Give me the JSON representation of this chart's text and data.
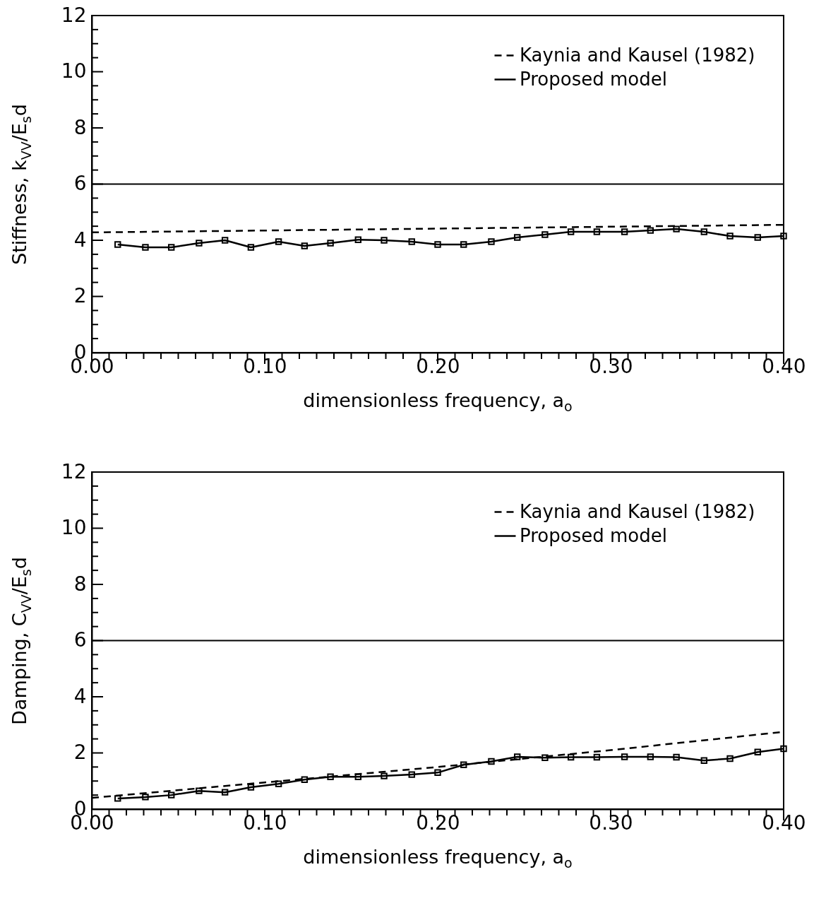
{
  "chart_data": [
    {
      "type": "line",
      "xlabel": "dimensionless frequency, a$_{o}$",
      "ylabel": "Stiffness, k$_{VV}$/E$_{s}$d",
      "xlim": [
        0,
        0.4
      ],
      "ylim": [
        0,
        12
      ],
      "xticks": [
        {
          "value": 0,
          "label": "0.00"
        },
        {
          "value": 0.01,
          "label": null
        },
        {
          "value": 0.02,
          "label": null
        },
        {
          "value": 0.03,
          "label": null
        },
        {
          "value": 0.04,
          "label": null
        },
        {
          "value": 0.05,
          "label": null
        },
        {
          "value": 0.06,
          "label": null
        },
        {
          "value": 0.07,
          "label": null
        },
        {
          "value": 0.08,
          "label": null
        },
        {
          "value": 0.09,
          "label": null
        },
        {
          "value": 0.1,
          "label": "0.10"
        },
        {
          "value": 0.11,
          "label": null
        },
        {
          "value": 0.12,
          "label": null
        },
        {
          "value": 0.13,
          "label": null
        },
        {
          "value": 0.14,
          "label": null
        },
        {
          "value": 0.15,
          "label": null
        },
        {
          "value": 0.16,
          "label": null
        },
        {
          "value": 0.17,
          "label": null
        },
        {
          "value": 0.18,
          "label": null
        },
        {
          "value": 0.19,
          "label": null
        },
        {
          "value": 0.2,
          "label": "0.20"
        },
        {
          "value": 0.21,
          "label": null
        },
        {
          "value": 0.22,
          "label": null
        },
        {
          "value": 0.23,
          "label": null
        },
        {
          "value": 0.24,
          "label": null
        },
        {
          "value": 0.25,
          "label": null
        },
        {
          "value": 0.26,
          "label": null
        },
        {
          "value": 0.27,
          "label": null
        },
        {
          "value": 0.28,
          "label": null
        },
        {
          "value": 0.29,
          "label": null
        },
        {
          "value": 0.3,
          "label": "0.30"
        },
        {
          "value": 0.31,
          "label": null
        },
        {
          "value": 0.32,
          "label": null
        },
        {
          "value": 0.33,
          "label": null
        },
        {
          "value": 0.34,
          "label": null
        },
        {
          "value": 0.35,
          "label": null
        },
        {
          "value": 0.36,
          "label": null
        },
        {
          "value": 0.37,
          "label": null
        },
        {
          "value": 0.38,
          "label": null
        },
        {
          "value": 0.39,
          "label": null
        },
        {
          "value": 0.4,
          "label": "0.40"
        }
      ],
      "yticks": [
        0,
        {
          "value": 0.5,
          "label": null
        },
        {
          "value": 1,
          "label": null
        },
        {
          "value": 1.5,
          "label": null
        },
        2,
        {
          "value": 2.5,
          "label": null
        },
        {
          "value": 3,
          "label": null
        },
        {
          "value": 3.5,
          "label": null
        },
        4,
        {
          "value": 4.5,
          "label": null
        },
        {
          "value": 5,
          "label": null
        },
        {
          "value": 5.5,
          "label": null
        },
        6,
        {
          "value": 6.5,
          "label": null
        },
        {
          "value": 7,
          "label": null
        },
        {
          "value": 7.5,
          "label": null
        },
        8,
        {
          "value": 8.5,
          "label": null
        },
        {
          "value": 9,
          "label": null
        },
        {
          "value": 9.5,
          "label": null
        },
        10,
        {
          "value": 10.5,
          "label": null
        },
        {
          "value": 11,
          "label": null
        },
        {
          "value": 11.5,
          "label": null
        },
        12
      ],
      "legend": "top right",
      "ref_lines": [
        {
          "axis": "y",
          "value": 6
        }
      ],
      "series": [
        {
          "name": "Kaynia and Kausel (1982)",
          "color": "#000000",
          "line_style": "dashed",
          "marker": "none",
          "x": [
            0,
            0.4
          ],
          "values": [
            4.28,
            4.55
          ]
        },
        {
          "name": "Proposed model",
          "color": "#000000",
          "line_style": "solid",
          "marker": "square",
          "x": [
            0.015,
            0.031,
            0.046,
            0.062,
            0.077,
            0.092,
            0.108,
            0.123,
            0.138,
            0.154,
            0.169,
            0.185,
            0.2,
            0.215,
            0.231,
            0.246,
            0.262,
            0.277,
            0.292,
            0.308,
            0.323,
            0.338,
            0.354,
            0.369,
            0.385,
            0.4
          ],
          "values": [
            3.85,
            3.75,
            3.75,
            3.9,
            4.0,
            3.75,
            3.95,
            3.8,
            3.9,
            4.02,
            4.0,
            3.95,
            3.85,
            3.85,
            3.95,
            4.1,
            4.2,
            4.3,
            4.3,
            4.3,
            4.35,
            4.4,
            4.3,
            4.15,
            4.1,
            4.15
          ]
        }
      ]
    },
    {
      "type": "line",
      "xlabel": "dimensionless frequency, a$_{o}$",
      "ylabel": "Damping, C$_{VV}$/E$_{s}$d",
      "xlim": [
        0,
        0.4
      ],
      "ylim": [
        0,
        12
      ],
      "xticks": [
        {
          "value": 0,
          "label": "0.00"
        },
        {
          "value": 0.01,
          "label": null
        },
        {
          "value": 0.02,
          "label": null
        },
        {
          "value": 0.03,
          "label": null
        },
        {
          "value": 0.04,
          "label": null
        },
        {
          "value": 0.05,
          "label": null
        },
        {
          "value": 0.06,
          "label": null
        },
        {
          "value": 0.07,
          "label": null
        },
        {
          "value": 0.08,
          "label": null
        },
        {
          "value": 0.09,
          "label": null
        },
        {
          "value": 0.1,
          "label": "0.10"
        },
        {
          "value": 0.11,
          "label": null
        },
        {
          "value": 0.12,
          "label": null
        },
        {
          "value": 0.13,
          "label": null
        },
        {
          "value": 0.14,
          "label": null
        },
        {
          "value": 0.15,
          "label": null
        },
        {
          "value": 0.16,
          "label": null
        },
        {
          "value": 0.17,
          "label": null
        },
        {
          "value": 0.18,
          "label": null
        },
        {
          "value": 0.19,
          "label": null
        },
        {
          "value": 0.2,
          "label": "0.20"
        },
        {
          "value": 0.21,
          "label": null
        },
        {
          "value": 0.22,
          "label": null
        },
        {
          "value": 0.23,
          "label": null
        },
        {
          "value": 0.24,
          "label": null
        },
        {
          "value": 0.25,
          "label": null
        },
        {
          "value": 0.26,
          "label": null
        },
        {
          "value": 0.27,
          "label": null
        },
        {
          "value": 0.28,
          "label": null
        },
        {
          "value": 0.29,
          "label": null
        },
        {
          "value": 0.3,
          "label": "0.30"
        },
        {
          "value": 0.31,
          "label": null
        },
        {
          "value": 0.32,
          "label": null
        },
        {
          "value": 0.33,
          "label": null
        },
        {
          "value": 0.34,
          "label": null
        },
        {
          "value": 0.35,
          "label": null
        },
        {
          "value": 0.36,
          "label": null
        },
        {
          "value": 0.37,
          "label": null
        },
        {
          "value": 0.38,
          "label": null
        },
        {
          "value": 0.39,
          "label": null
        },
        {
          "value": 0.4,
          "label": "0.40"
        }
      ],
      "yticks": [
        0,
        {
          "value": 0.5,
          "label": null
        },
        {
          "value": 1,
          "label": null
        },
        {
          "value": 1.5,
          "label": null
        },
        2,
        {
          "value": 2.5,
          "label": null
        },
        {
          "value": 3,
          "label": null
        },
        {
          "value": 3.5,
          "label": null
        },
        4,
        {
          "value": 4.5,
          "label": null
        },
        {
          "value": 5,
          "label": null
        },
        {
          "value": 5.5,
          "label": null
        },
        6,
        {
          "value": 6.5,
          "label": null
        },
        {
          "value": 7,
          "label": null
        },
        {
          "value": 7.5,
          "label": null
        },
        8,
        {
          "value": 8.5,
          "label": null
        },
        {
          "value": 9,
          "label": null
        },
        {
          "value": 9.5,
          "label": null
        },
        10,
        {
          "value": 10.5,
          "label": null
        },
        {
          "value": 11,
          "label": null
        },
        {
          "value": 11.5,
          "label": null
        },
        12
      ],
      "legend": "top right",
      "ref_lines": [
        {
          "axis": "y",
          "value": 6
        }
      ],
      "series": [
        {
          "name": "Kaynia and Kausel (1982)",
          "color": "#000000",
          "line_style": "dashed",
          "marker": "none",
          "x": [
            0,
            0.1,
            0.2,
            0.3,
            0.4
          ],
          "values": [
            0.4,
            0.95,
            1.5,
            2.1,
            2.75
          ]
        },
        {
          "name": "Proposed model",
          "color": "#000000",
          "line_style": "solid",
          "marker": "square",
          "x": [
            0.015,
            0.031,
            0.046,
            0.062,
            0.077,
            0.092,
            0.108,
            0.123,
            0.138,
            0.154,
            0.169,
            0.185,
            0.2,
            0.215,
            0.231,
            0.246,
            0.262,
            0.277,
            0.292,
            0.308,
            0.323,
            0.338,
            0.354,
            0.369,
            0.385,
            0.4
          ],
          "values": [
            0.38,
            0.43,
            0.5,
            0.65,
            0.6,
            0.78,
            0.9,
            1.05,
            1.15,
            1.15,
            1.18,
            1.23,
            1.3,
            1.58,
            1.7,
            1.86,
            1.83,
            1.85,
            1.85,
            1.86,
            1.86,
            1.85,
            1.73,
            1.8,
            2.03,
            2.15
          ]
        }
      ]
    }
  ]
}
